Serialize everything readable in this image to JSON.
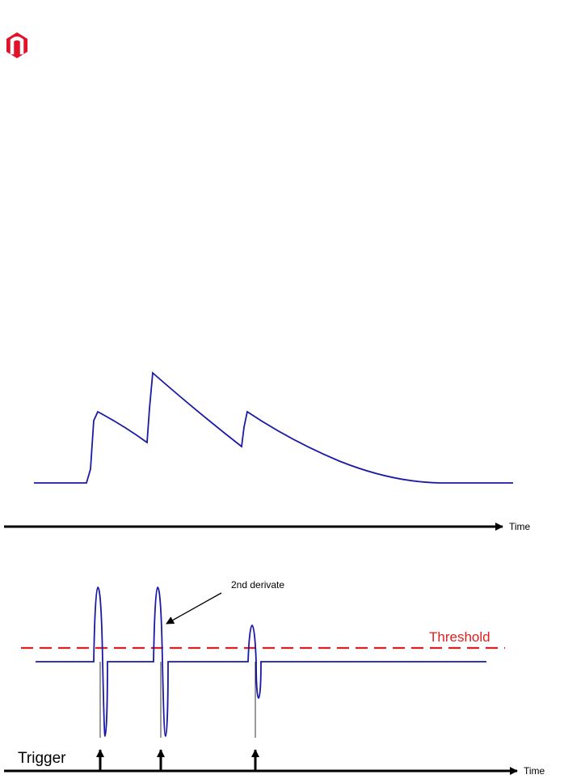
{
  "logo": {
    "letter": "n",
    "color": "#e3112a"
  },
  "top_panel": {
    "axis_label": "Time",
    "signal_color": "#1a1aa6"
  },
  "bottom_panel": {
    "axis_label": "Time",
    "annotation": "2nd derivate",
    "threshold_label": "Threshold",
    "threshold_color": "#e02020",
    "trigger_label": "Trigger",
    "trigger_count": 3
  }
}
